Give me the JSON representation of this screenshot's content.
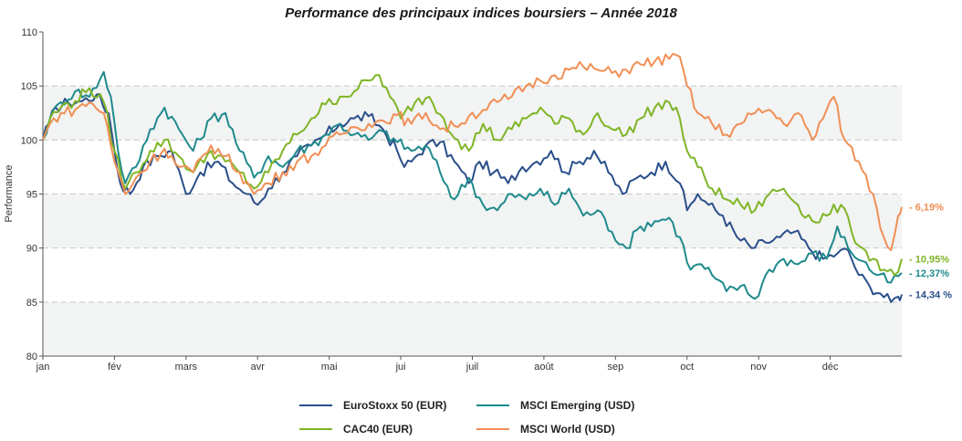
{
  "chart_data": {
    "type": "line",
    "title": "Performance des principaux indices boursiers – Année 2018",
    "ylabel": "Performance",
    "xlabel": "",
    "ylim": [
      80,
      110
    ],
    "yticks": [
      "80",
      "85",
      "90",
      "95",
      "100",
      "105",
      "110"
    ],
    "xlim": [
      0,
      12
    ],
    "xticks": [
      {
        "label": "jan",
        "pos": 0
      },
      {
        "label": "fév",
        "pos": 1
      },
      {
        "label": "mars",
        "pos": 2
      },
      {
        "label": "avr",
        "pos": 3
      },
      {
        "label": "mai",
        "pos": 4
      },
      {
        "label": "jui",
        "pos": 5
      },
      {
        "label": "juil",
        "pos": 6
      },
      {
        "label": "août",
        "pos": 7
      },
      {
        "label": "sep",
        "pos": 8
      },
      {
        "label": "oct",
        "pos": 9
      },
      {
        "label": "nov",
        "pos": 10
      },
      {
        "label": "déc",
        "pos": 11
      }
    ],
    "grid": "horizontal dashed, alternating shaded bands",
    "series": [
      {
        "name": "EuroStoxx 50 (EUR)",
        "color": "#2a4f8a",
        "end_label": "- 14,34 %",
        "points": [
          [
            0,
            100
          ],
          [
            0.08,
            101.5
          ],
          [
            0.18,
            103
          ],
          [
            0.35,
            103.5
          ],
          [
            0.55,
            103.6
          ],
          [
            0.75,
            104.2
          ],
          [
            0.92,
            102.5
          ],
          [
            1.0,
            99
          ],
          [
            1.08,
            96
          ],
          [
            1.22,
            95
          ],
          [
            1.4,
            97.5
          ],
          [
            1.6,
            98.5
          ],
          [
            1.8,
            99
          ],
          [
            2.0,
            95
          ],
          [
            2.2,
            97
          ],
          [
            2.45,
            98
          ],
          [
            2.65,
            96
          ],
          [
            2.85,
            95
          ],
          [
            3.0,
            94
          ],
          [
            3.15,
            95.5
          ],
          [
            3.35,
            97
          ],
          [
            3.55,
            98.5
          ],
          [
            3.75,
            99.5
          ],
          [
            3.95,
            100.5
          ],
          [
            4.15,
            101.5
          ],
          [
            4.35,
            102
          ],
          [
            4.55,
            102.2
          ],
          [
            4.75,
            101
          ],
          [
            4.95,
            99
          ],
          [
            5.05,
            97.5
          ],
          [
            5.15,
            98
          ],
          [
            5.35,
            99.5
          ],
          [
            5.55,
            99.8
          ],
          [
            5.75,
            98
          ],
          [
            5.95,
            96
          ],
          [
            6.1,
            98
          ],
          [
            6.3,
            97
          ],
          [
            6.5,
            96
          ],
          [
            6.7,
            97.5
          ],
          [
            6.9,
            98
          ],
          [
            7.1,
            99
          ],
          [
            7.3,
            97
          ],
          [
            7.5,
            98
          ],
          [
            7.7,
            99
          ],
          [
            7.9,
            97
          ],
          [
            8.1,
            95
          ],
          [
            8.3,
            96.5
          ],
          [
            8.5,
            97
          ],
          [
            8.7,
            98
          ],
          [
            8.9,
            96
          ],
          [
            9.0,
            93.5
          ],
          [
            9.15,
            95
          ],
          [
            9.3,
            94
          ],
          [
            9.5,
            93
          ],
          [
            9.7,
            91
          ],
          [
            9.9,
            90
          ],
          [
            10.1,
            90.5
          ],
          [
            10.3,
            91
          ],
          [
            10.5,
            91.5
          ],
          [
            10.7,
            90
          ],
          [
            10.9,
            89
          ],
          [
            11.1,
            89.5
          ],
          [
            11.25,
            89.8
          ],
          [
            11.4,
            87.5
          ],
          [
            11.55,
            86.5
          ],
          [
            11.7,
            85.8
          ],
          [
            11.85,
            85
          ],
          [
            11.95,
            85.5
          ],
          [
            12.0,
            85.7
          ]
        ]
      },
      {
        "name": "MSCI Emerging (USD)",
        "color": "#1f8a8c",
        "end_label": "- 12,37%",
        "points": [
          [
            0,
            100
          ],
          [
            0.1,
            102
          ],
          [
            0.25,
            103.5
          ],
          [
            0.45,
            104.5
          ],
          [
            0.65,
            104
          ],
          [
            0.85,
            106.3
          ],
          [
            0.95,
            104
          ],
          [
            1.05,
            99
          ],
          [
            1.15,
            96
          ],
          [
            1.3,
            97.5
          ],
          [
            1.5,
            101
          ],
          [
            1.7,
            103
          ],
          [
            1.9,
            101
          ],
          [
            2.1,
            99
          ],
          [
            2.35,
            102
          ],
          [
            2.55,
            102.5
          ],
          [
            2.75,
            99
          ],
          [
            2.95,
            96.5
          ],
          [
            3.15,
            98.5
          ],
          [
            3.35,
            97.5
          ],
          [
            3.55,
            99
          ],
          [
            3.75,
            99.5
          ],
          [
            3.95,
            100.5
          ],
          [
            4.15,
            101.5
          ],
          [
            4.35,
            100.5
          ],
          [
            4.55,
            100
          ],
          [
            4.75,
            100.8
          ],
          [
            4.95,
            99.8
          ],
          [
            5.15,
            99
          ],
          [
            5.35,
            99.5
          ],
          [
            5.55,
            97
          ],
          [
            5.75,
            94.5
          ],
          [
            5.95,
            96.5
          ],
          [
            6.15,
            94
          ],
          [
            6.35,
            93.5
          ],
          [
            6.55,
            95
          ],
          [
            6.75,
            94.5
          ],
          [
            6.95,
            95.5
          ],
          [
            7.15,
            94
          ],
          [
            7.35,
            95.5
          ],
          [
            7.55,
            93
          ],
          [
            7.75,
            93.5
          ],
          [
            7.95,
            91.5
          ],
          [
            8.15,
            90
          ],
          [
            8.35,
            92
          ],
          [
            8.55,
            92.5
          ],
          [
            8.75,
            92.8
          ],
          [
            8.9,
            91
          ],
          [
            9.05,
            88
          ],
          [
            9.2,
            88.5
          ],
          [
            9.35,
            87.5
          ],
          [
            9.55,
            86
          ],
          [
            9.75,
            86.5
          ],
          [
            9.95,
            85.3
          ],
          [
            10.15,
            88
          ],
          [
            10.35,
            89
          ],
          [
            10.55,
            88.5
          ],
          [
            10.75,
            89.5
          ],
          [
            10.95,
            89
          ],
          [
            11.1,
            92
          ],
          [
            11.25,
            90
          ],
          [
            11.45,
            88.8
          ],
          [
            11.65,
            87.5
          ],
          [
            11.85,
            86.8
          ],
          [
            12.0,
            87.7
          ]
        ]
      },
      {
        "name": "CAC40 (EUR)",
        "color": "#7fb526",
        "end_label": "- 10,95%",
        "points": [
          [
            0,
            100
          ],
          [
            0.1,
            102
          ],
          [
            0.25,
            103
          ],
          [
            0.45,
            103.6
          ],
          [
            0.65,
            104.8
          ],
          [
            0.85,
            103.5
          ],
          [
            1.0,
            99
          ],
          [
            1.15,
            95.5
          ],
          [
            1.3,
            97
          ],
          [
            1.5,
            99
          ],
          [
            1.7,
            100
          ],
          [
            1.9,
            98.5
          ],
          [
            2.1,
            97
          ],
          [
            2.35,
            99
          ],
          [
            2.55,
            98
          ],
          [
            2.75,
            97
          ],
          [
            2.95,
            95.5
          ],
          [
            3.15,
            97
          ],
          [
            3.35,
            99
          ],
          [
            3.55,
            100.5
          ],
          [
            3.75,
            102
          ],
          [
            3.95,
            103.3
          ],
          [
            4.15,
            104
          ],
          [
            4.35,
            104.5
          ],
          [
            4.55,
            105.5
          ],
          [
            4.7,
            106
          ],
          [
            4.85,
            104
          ],
          [
            5.0,
            102
          ],
          [
            5.2,
            103.5
          ],
          [
            5.4,
            104
          ],
          [
            5.6,
            102
          ],
          [
            5.8,
            100
          ],
          [
            5.95,
            99
          ],
          [
            6.15,
            101.5
          ],
          [
            6.35,
            100
          ],
          [
            6.55,
            101
          ],
          [
            6.75,
            102
          ],
          [
            6.95,
            103
          ],
          [
            7.15,
            101.5
          ],
          [
            7.35,
            102
          ],
          [
            7.55,
            100.5
          ],
          [
            7.75,
            102.5
          ],
          [
            7.95,
            101
          ],
          [
            8.15,
            100.5
          ],
          [
            8.35,
            102
          ],
          [
            8.55,
            103
          ],
          [
            8.75,
            103.5
          ],
          [
            8.9,
            102
          ],
          [
            9.0,
            99
          ],
          [
            9.15,
            97.5
          ],
          [
            9.35,
            95.5
          ],
          [
            9.55,
            94.5
          ],
          [
            9.75,
            94
          ],
          [
            9.95,
            93.5
          ],
          [
            10.15,
            95
          ],
          [
            10.35,
            95.5
          ],
          [
            10.55,
            94
          ],
          [
            10.75,
            92.5
          ],
          [
            10.95,
            93
          ],
          [
            11.15,
            94
          ],
          [
            11.3,
            91.5
          ],
          [
            11.45,
            90
          ],
          [
            11.6,
            89
          ],
          [
            11.75,
            88
          ],
          [
            11.9,
            87.5
          ],
          [
            12.0,
            89
          ]
        ]
      },
      {
        "name": "MSCI World (USD)",
        "color": "#f08f55",
        "end_label": "- 6,19%",
        "points": [
          [
            0,
            100
          ],
          [
            0.1,
            101.5
          ],
          [
            0.25,
            102.5
          ],
          [
            0.45,
            102.8
          ],
          [
            0.65,
            103.5
          ],
          [
            0.85,
            102.5
          ],
          [
            1.0,
            98
          ],
          [
            1.15,
            95
          ],
          [
            1.3,
            96.5
          ],
          [
            1.5,
            98
          ],
          [
            1.7,
            99.2
          ],
          [
            1.9,
            97.5
          ],
          [
            2.1,
            97
          ],
          [
            2.35,
            99.5
          ],
          [
            2.55,
            98.5
          ],
          [
            2.75,
            97
          ],
          [
            2.95,
            95
          ],
          [
            3.15,
            96
          ],
          [
            3.35,
            97
          ],
          [
            3.55,
            98
          ],
          [
            3.75,
            98.5
          ],
          [
            3.95,
            99.5
          ],
          [
            4.15,
            100.5
          ],
          [
            4.35,
            101.2
          ],
          [
            4.55,
            101.5
          ],
          [
            4.75,
            101.8
          ],
          [
            4.95,
            102.3
          ],
          [
            5.15,
            101.5
          ],
          [
            5.35,
            102.5
          ],
          [
            5.55,
            101
          ],
          [
            5.75,
            101.3
          ],
          [
            5.95,
            102.2
          ],
          [
            6.15,
            102.8
          ],
          [
            6.35,
            103.5
          ],
          [
            6.55,
            104
          ],
          [
            6.75,
            105
          ],
          [
            6.95,
            105.5
          ],
          [
            7.15,
            106
          ],
          [
            7.35,
            106.5
          ],
          [
            7.55,
            106.8
          ],
          [
            7.75,
            106.5
          ],
          [
            7.95,
            106.2
          ],
          [
            8.15,
            106.5
          ],
          [
            8.35,
            107
          ],
          [
            8.55,
            107.3
          ],
          [
            8.75,
            107.5
          ],
          [
            8.9,
            107.7
          ],
          [
            9.0,
            105
          ],
          [
            9.15,
            102.5
          ],
          [
            9.35,
            101.5
          ],
          [
            9.55,
            100.5
          ],
          [
            9.75,
            101.5
          ],
          [
            9.95,
            102.5
          ],
          [
            10.15,
            102.8
          ],
          [
            10.35,
            101.5
          ],
          [
            10.55,
            102.5
          ],
          [
            10.75,
            100
          ],
          [
            10.95,
            102.8
          ],
          [
            11.05,
            104
          ],
          [
            11.2,
            100
          ],
          [
            11.4,
            98
          ],
          [
            11.6,
            95
          ],
          [
            11.75,
            91
          ],
          [
            11.85,
            89.8
          ],
          [
            11.95,
            93
          ],
          [
            12.0,
            93.8
          ]
        ]
      }
    ]
  },
  "legend": [
    {
      "label": "EuroStoxx 50 (EUR)",
      "color": "#2a4f8a"
    },
    {
      "label": "MSCI Emerging (USD)",
      "color": "#1f8a8c"
    },
    {
      "label": "CAC40 (EUR)",
      "color": "#7fb526"
    },
    {
      "label": "MSCI World (USD)",
      "color": "#f08f55"
    }
  ]
}
